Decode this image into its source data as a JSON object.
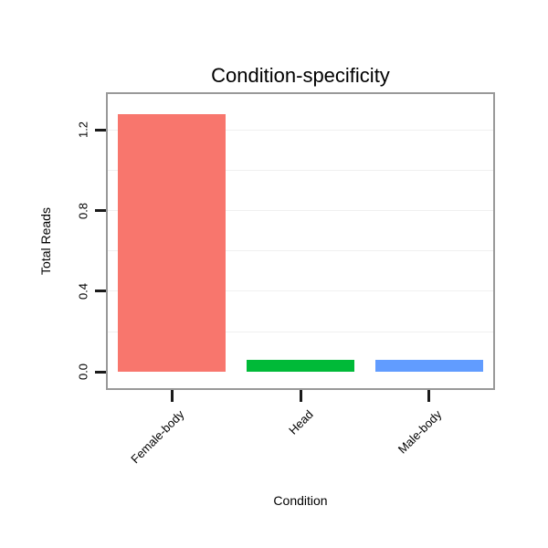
{
  "chart_data": {
    "type": "bar",
    "title": "Condition-specificity",
    "xlabel": "Condition",
    "ylabel": "Total Reads",
    "categories": [
      "Female-body",
      "Head",
      "Male-body"
    ],
    "values": [
      1.28,
      0.06,
      0.06
    ],
    "bar_colors": [
      "#F8766D",
      "#00BA38",
      "#619CFF"
    ],
    "yticks": [
      0.0,
      0.4,
      0.8,
      1.2
    ],
    "ytick_labels": [
      "0.0",
      "0.4",
      "0.8",
      "1.2"
    ],
    "ylim": [
      -0.08,
      1.378
    ],
    "grid_values": [
      0.2,
      0.4,
      0.6,
      0.8,
      1.0,
      1.2
    ],
    "grid": "faint horizontal gridlines",
    "legend": "none",
    "bar_width_frac": 0.28,
    "panel_border_color": "#999999",
    "tick_color": "#1a1a1a"
  }
}
